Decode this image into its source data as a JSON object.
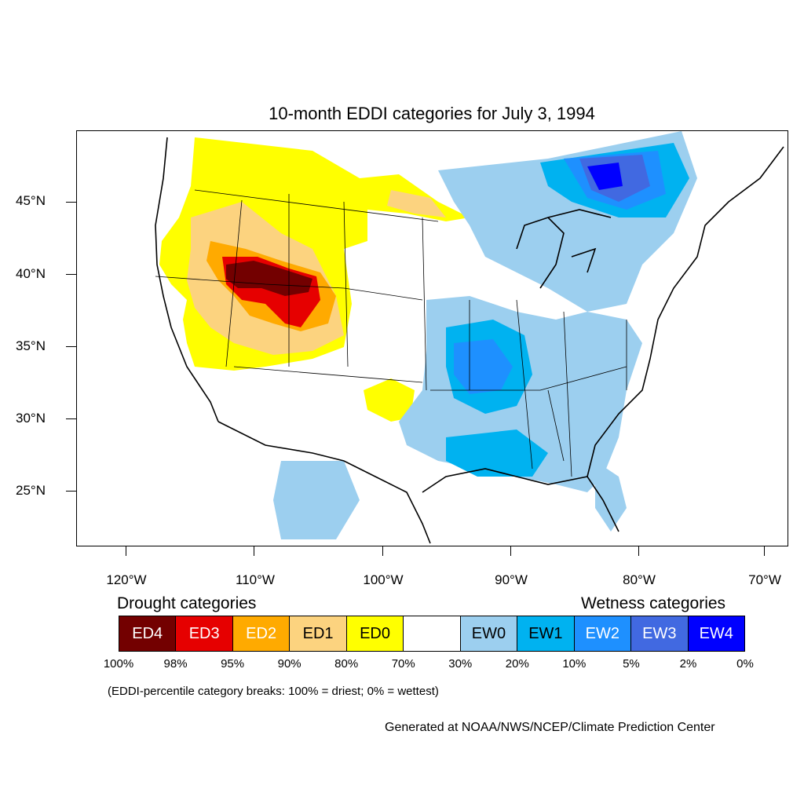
{
  "title": "10-month EDDI categories for July 3, 1994",
  "lat_labels": [
    "45°N",
    "40°N",
    "35°N",
    "30°N",
    "25°N"
  ],
  "lon_labels": [
    "120°W",
    "110°W",
    "100°W",
    "90°W",
    "80°W",
    "70°W"
  ],
  "legend": {
    "drought_heading": "Drought categories",
    "wetness_heading": "Wetness categories",
    "categories": [
      {
        "label": "ED4",
        "color": "#730000",
        "text_color": "#ffffff"
      },
      {
        "label": "ED3",
        "color": "#e60000",
        "text_color": "#ffffff"
      },
      {
        "label": "ED2",
        "color": "#ffaa00",
        "text_color": "#ffffff"
      },
      {
        "label": "ED1",
        "color": "#fcd37f",
        "text_color": "#000000"
      },
      {
        "label": "ED0",
        "color": "#ffff00",
        "text_color": "#000000"
      },
      {
        "label": "",
        "color": "#ffffff",
        "text_color": "#000000"
      },
      {
        "label": "EW0",
        "color": "#9ccfef",
        "text_color": "#000000"
      },
      {
        "label": "EW1",
        "color": "#00b2f0",
        "text_color": "#000000"
      },
      {
        "label": "EW2",
        "color": "#1e90ff",
        "text_color": "#ffffff"
      },
      {
        "label": "EW3",
        "color": "#4169e1",
        "text_color": "#ffffff"
      },
      {
        "label": "EW4",
        "color": "#0000ff",
        "text_color": "#ffffff"
      }
    ],
    "breaks": [
      "100%",
      "98%",
      "95%",
      "90%",
      "80%",
      "70%",
      "30%",
      "20%",
      "10%",
      "5%",
      "2%",
      "0%"
    ],
    "note": "(EDDI-percentile category breaks: 100% = driest; 0% = wettest)"
  },
  "credit": "Generated at NOAA/NWS/NCEP/Climate Prediction Center"
}
